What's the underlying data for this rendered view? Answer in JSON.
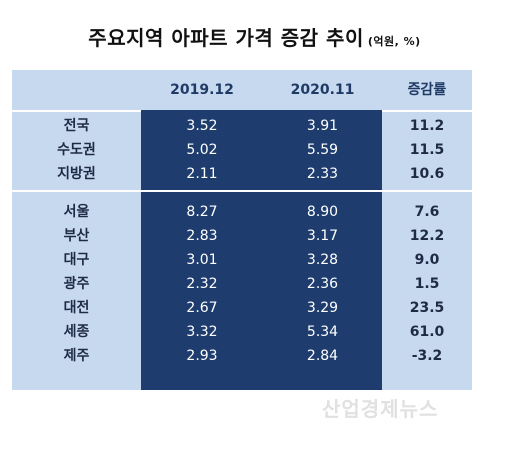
{
  "title": {
    "main": "주요지역 아파트 가격 증감 추이",
    "unit": "(억원, %)"
  },
  "table": {
    "columns": [
      "",
      "2019.12",
      "2020.11",
      "증감률"
    ],
    "groups": [
      [
        {
          "region": "전국",
          "v2019": "3.52",
          "v2020": "3.91",
          "growth": "11.2"
        },
        {
          "region": "수도권",
          "v2019": "5.02",
          "v2020": "5.59",
          "growth": "11.5"
        },
        {
          "region": "지방권",
          "v2019": "2.11",
          "v2020": "2.33",
          "growth": "10.6"
        }
      ],
      [
        {
          "region": "서울",
          "v2019": "8.27",
          "v2020": "8.90",
          "growth": "7.6"
        },
        {
          "region": "부산",
          "v2019": "2.83",
          "v2020": "3.17",
          "growth": "12.2"
        },
        {
          "region": "대구",
          "v2019": "3.01",
          "v2020": "3.28",
          "growth": "9.0"
        },
        {
          "region": "광주",
          "v2019": "2.32",
          "v2020": "2.36",
          "growth": "1.5"
        },
        {
          "region": "대전",
          "v2019": "2.67",
          "v2020": "3.29",
          "growth": "23.5"
        },
        {
          "region": "세종",
          "v2019": "3.32",
          "v2020": "5.34",
          "growth": "61.0"
        },
        {
          "region": "제주",
          "v2019": "2.93",
          "v2020": "2.84",
          "growth": "-3.2"
        }
      ]
    ]
  },
  "watermark": "산업경제뉴스",
  "colors": {
    "table_bg": "#c6d9ef",
    "dark_band": "#1e3d6e",
    "header_text": "#1f3a64"
  }
}
